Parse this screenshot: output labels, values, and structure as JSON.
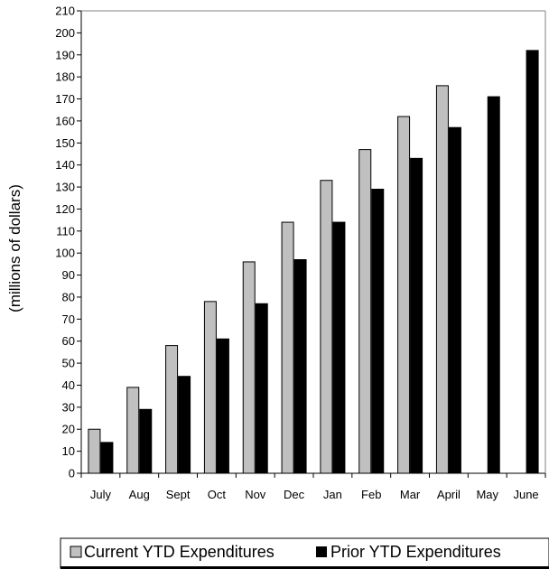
{
  "chart_data": {
    "type": "bar",
    "title": "",
    "xlabel": "",
    "ylabel": "(millions of dollars)",
    "ylim": [
      0,
      210
    ],
    "ytick_step": 10,
    "grid": false,
    "legend_position": "bottom",
    "categories": [
      "July",
      "Aug",
      "Sept",
      "Oct",
      "Nov",
      "Dec",
      "Jan",
      "Feb",
      "Mar",
      "April",
      "May",
      "June"
    ],
    "series": [
      {
        "name": "Current YTD Expenditures",
        "color": "#c0c0c0",
        "values": [
          20,
          39,
          58,
          78,
          96,
          114,
          133,
          147,
          162,
          176,
          null,
          null
        ]
      },
      {
        "name": "Prior YTD Expenditures",
        "color": "#000000",
        "values": [
          14,
          29,
          44,
          61,
          77,
          97,
          114,
          129,
          143,
          157,
          171,
          192
        ]
      }
    ]
  }
}
